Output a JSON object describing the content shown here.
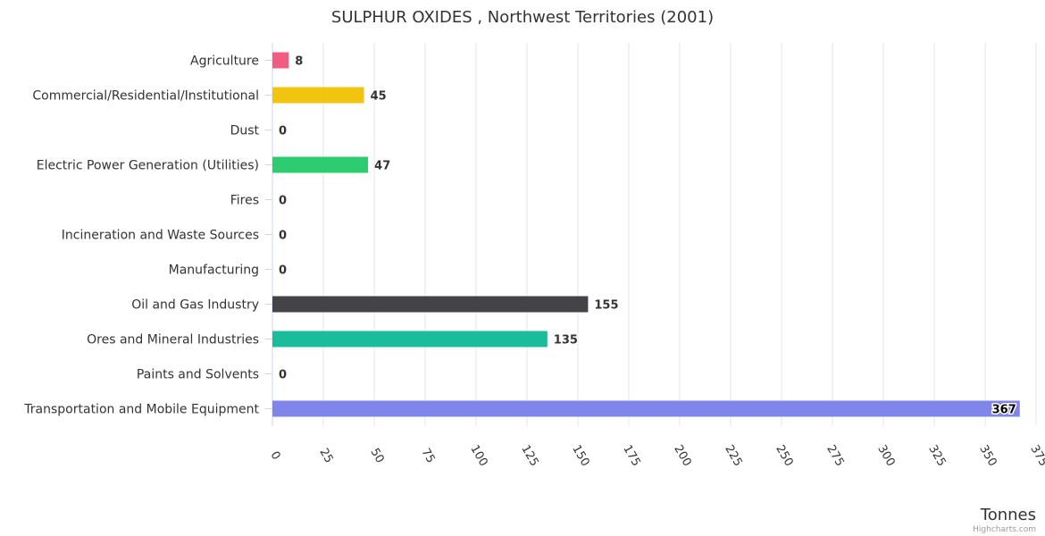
{
  "chart_data": {
    "type": "bar",
    "orientation": "horizontal",
    "title": "SULPHUR OXIDES , Northwest Territories (2001)",
    "categories": [
      "Agriculture",
      "Commercial/Residential/Institutional",
      "Dust",
      "Electric Power Generation (Utilities)",
      "Fires",
      "Incineration and Waste Sources",
      "Manufacturing",
      "Oil and Gas Industry",
      "Ores and Mineral Industries",
      "Paints and Solvents",
      "Transportation and Mobile Equipment"
    ],
    "values": [
      8,
      45,
      0,
      47,
      0,
      0,
      0,
      155,
      135,
      0,
      367
    ],
    "data_labels": [
      "8",
      "45",
      "0",
      "47",
      "0",
      "0",
      "0",
      "155",
      "135",
      "0",
      "367"
    ],
    "colors": [
      "#f15c80",
      "#f1c40f",
      "#95a5a6",
      "#2ecc71",
      "#e67e22",
      "#8e44ad",
      "#3498db",
      "#434348",
      "#1abc9c",
      "#e74c3c",
      "#8085e9"
    ],
    "xlabel": "Tonnes",
    "xlim": [
      0,
      375
    ],
    "xticks": [
      0,
      25,
      50,
      75,
      100,
      125,
      150,
      175,
      200,
      225,
      250,
      275,
      300,
      325,
      350,
      375
    ],
    "xtick_labels": [
      "0",
      "25",
      "50",
      "75",
      "100",
      "125",
      "150",
      "175",
      "200",
      "225",
      "250",
      "275",
      "300",
      "325",
      "350",
      "375"
    ],
    "grid": true,
    "legend": "none"
  },
  "credits": "Highcharts.com"
}
